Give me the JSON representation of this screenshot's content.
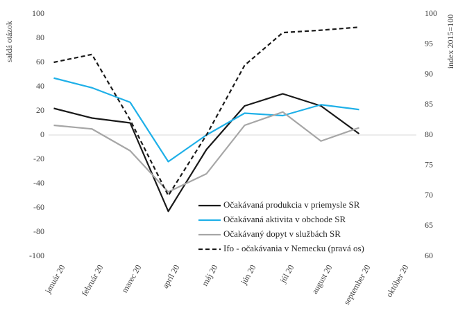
{
  "chart_data": {
    "type": "line",
    "ylabel": "saldá otázok",
    "y2label": "index 2015=100",
    "categories": [
      "január 20",
      "február 20",
      "marec 20",
      "apríl 20",
      "máj 20",
      "jún 20",
      "júl 20",
      "august 20",
      "september 20",
      "október 20"
    ],
    "series": [
      {
        "name": "Očakávaná produkcia v priemysle SR",
        "color": "#1a1a1a",
        "dash": false,
        "values": [
          22,
          14,
          10,
          -63,
          -12,
          24,
          34,
          24,
          1,
          null
        ]
      },
      {
        "name": "Očakávaná aktivita v obchode SR",
        "color": "#1fb0e8",
        "dash": false,
        "values": [
          47,
          39,
          27,
          -22,
          0,
          18,
          16,
          25,
          21,
          null
        ]
      },
      {
        "name": "Očakávaný dopyt v službách SR",
        "color": "#a6a6a6",
        "dash": false,
        "values": [
          8,
          5,
          -13,
          -47,
          -32,
          8,
          19,
          -5,
          6,
          null
        ]
      },
      {
        "name": "Ifo - očakávania v Nemecku (pravá os)",
        "color": "#1a1a1a",
        "dash": true,
        "axis": "y2",
        "values": [
          92,
          93.3,
          82.5,
          70,
          80,
          91.5,
          96.9,
          97.3,
          97.8,
          null
        ]
      }
    ],
    "ylim": [
      -100,
      100
    ],
    "yticks": [
      -100,
      -80,
      -60,
      -40,
      -20,
      0,
      20,
      40,
      60,
      80,
      100
    ],
    "y2lim": [
      60,
      100
    ],
    "y2ticks": [
      60,
      65,
      70,
      75,
      80,
      85,
      90,
      95,
      100
    ],
    "legend": "lower right"
  }
}
